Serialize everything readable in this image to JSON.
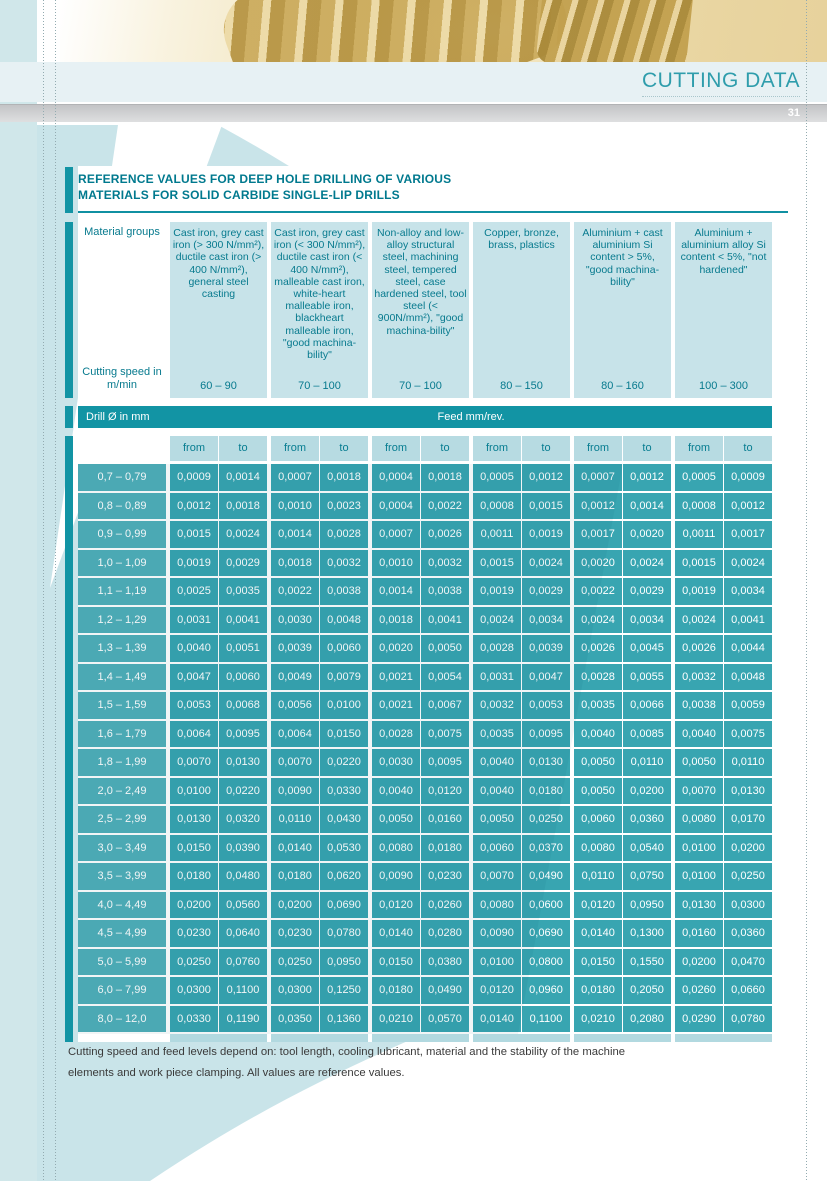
{
  "page": {
    "header_title": "CUTTING DATA",
    "page_number": "31"
  },
  "table_title": {
    "line1": "REFERENCE VALUES FOR DEEP HOLE DRILLING OF VARIOUS",
    "line2": "MATERIALS FOR SOLID CARBIDE SINGLE-LIP DRILLS"
  },
  "materials": {
    "row_label": "Material groups",
    "speed_label": "Cutting speed in m/min",
    "groups": [
      {
        "name": "Cast iron, grey cast iron (> 300 N/mm²), ductile cast iron (> 400 N/mm²), general steel casting",
        "speed": "60 – 90"
      },
      {
        "name": "Cast iron, grey cast iron (< 300 N/mm²), ductile cast iron (< 400 N/mm²), malleable cast iron, white-heart malleable iron, blackheart malleable iron, \"good machina-bility\"",
        "speed": "70 – 100"
      },
      {
        "name": "Non-alloy and low-alloy structural steel, machining steel, tempered steel, case hardened steel, tool steel (< 900N/mm²), \"good machina-bility\"",
        "speed": "70 – 100"
      },
      {
        "name": "Copper, bronze, brass, plastics",
        "speed": "80 – 150"
      },
      {
        "name": "Aluminium + cast aluminium Si content > 5%, \"good machina-bility\"",
        "speed": "80 – 160"
      },
      {
        "name": "Aluminium + aluminium alloy Si content < 5%, \"not hardened\"",
        "speed": "100 – 300"
      }
    ]
  },
  "feed_table": {
    "drill_col_header": "Drill Ø in mm",
    "feed_header": "Feed mm/rev.",
    "from_label": "from",
    "to_label": "to",
    "rows": [
      {
        "range": "0,7 – 0,79",
        "values": [
          "0,0009",
          "0,0014",
          "0,0007",
          "0,0018",
          "0,0004",
          "0,0018",
          "0,0005",
          "0,0012",
          "0,0007",
          "0,0012",
          "0,0005",
          "0,0009"
        ]
      },
      {
        "range": "0,8 – 0,89",
        "values": [
          "0,0012",
          "0,0018",
          "0,0010",
          "0,0023",
          "0,0004",
          "0,0022",
          "0,0008",
          "0,0015",
          "0,0012",
          "0,0014",
          "0,0008",
          "0,0012"
        ]
      },
      {
        "range": "0,9 – 0,99",
        "values": [
          "0,0015",
          "0,0024",
          "0,0014",
          "0,0028",
          "0,0007",
          "0,0026",
          "0,0011",
          "0,0019",
          "0,0017",
          "0,0020",
          "0,0011",
          "0,0017"
        ]
      },
      {
        "range": "1,0 – 1,09",
        "values": [
          "0,0019",
          "0,0029",
          "0,0018",
          "0,0032",
          "0,0010",
          "0,0032",
          "0,0015",
          "0,0024",
          "0,0020",
          "0,0024",
          "0,0015",
          "0,0024"
        ]
      },
      {
        "range": "1,1 – 1,19",
        "values": [
          "0,0025",
          "0,0035",
          "0,0022",
          "0,0038",
          "0,0014",
          "0,0038",
          "0,0019",
          "0,0029",
          "0,0022",
          "0,0029",
          "0,0019",
          "0,0034"
        ]
      },
      {
        "range": "1,2 – 1,29",
        "values": [
          "0,0031",
          "0,0041",
          "0,0030",
          "0,0048",
          "0,0018",
          "0,0041",
          "0,0024",
          "0,0034",
          "0,0024",
          "0,0034",
          "0,0024",
          "0,0041"
        ]
      },
      {
        "range": "1,3 – 1,39",
        "values": [
          "0,0040",
          "0,0051",
          "0,0039",
          "0,0060",
          "0,0020",
          "0,0050",
          "0,0028",
          "0,0039",
          "0,0026",
          "0,0045",
          "0,0026",
          "0,0044"
        ]
      },
      {
        "range": "1,4 – 1,49",
        "values": [
          "0,0047",
          "0,0060",
          "0,0049",
          "0,0079",
          "0,0021",
          "0,0054",
          "0,0031",
          "0,0047",
          "0,0028",
          "0,0055",
          "0,0032",
          "0,0048"
        ]
      },
      {
        "range": "1,5 – 1,59",
        "values": [
          "0,0053",
          "0,0068",
          "0,0056",
          "0,0100",
          "0,0021",
          "0,0067",
          "0,0032",
          "0,0053",
          "0,0035",
          "0,0066",
          "0,0038",
          "0,0059"
        ]
      },
      {
        "range": "1,6 – 1,79",
        "values": [
          "0,0064",
          "0,0095",
          "0,0064",
          "0,0150",
          "0,0028",
          "0,0075",
          "0,0035",
          "0,0095",
          "0,0040",
          "0,0085",
          "0,0040",
          "0,0075"
        ]
      },
      {
        "range": "1,8 – 1,99",
        "values": [
          "0,0070",
          "0,0130",
          "0,0070",
          "0,0220",
          "0,0030",
          "0,0095",
          "0,0040",
          "0,0130",
          "0,0050",
          "0,0110",
          "0,0050",
          "0,0110"
        ]
      },
      {
        "range": "2,0 – 2,49",
        "values": [
          "0,0100",
          "0,0220",
          "0,0090",
          "0,0330",
          "0,0040",
          "0,0120",
          "0,0040",
          "0,0180",
          "0,0050",
          "0,0200",
          "0,0070",
          "0,0130"
        ]
      },
      {
        "range": "2,5 – 2,99",
        "values": [
          "0,0130",
          "0,0320",
          "0,0110",
          "0,0430",
          "0,0050",
          "0,0160",
          "0,0050",
          "0,0250",
          "0,0060",
          "0,0360",
          "0,0080",
          "0,0170"
        ]
      },
      {
        "range": "3,0 – 3,49",
        "values": [
          "0,0150",
          "0,0390",
          "0,0140",
          "0,0530",
          "0,0080",
          "0,0180",
          "0,0060",
          "0,0370",
          "0,0080",
          "0,0540",
          "0,0100",
          "0,0200"
        ]
      },
      {
        "range": "3,5 – 3,99",
        "values": [
          "0,0180",
          "0,0480",
          "0,0180",
          "0,0620",
          "0,0090",
          "0,0230",
          "0,0070",
          "0,0490",
          "0,0110",
          "0,0750",
          "0,0100",
          "0,0250"
        ]
      },
      {
        "range": "4,0 – 4,49",
        "values": [
          "0,0200",
          "0,0560",
          "0,0200",
          "0,0690",
          "0,0120",
          "0,0260",
          "0,0080",
          "0,0600",
          "0,0120",
          "0,0950",
          "0,0130",
          "0,0300"
        ]
      },
      {
        "range": "4,5 – 4,99",
        "values": [
          "0,0230",
          "0,0640",
          "0,0230",
          "0,0780",
          "0,0140",
          "0,0280",
          "0,0090",
          "0,0690",
          "0,0140",
          "0,1300",
          "0,0160",
          "0,0360"
        ]
      },
      {
        "range": "5,0 – 5,99",
        "values": [
          "0,0250",
          "0,0760",
          "0,0250",
          "0,0950",
          "0,0150",
          "0,0380",
          "0,0100",
          "0,0800",
          "0,0150",
          "0,1550",
          "0,0200",
          "0,0470"
        ]
      },
      {
        "range": "6,0 – 7,99",
        "values": [
          "0,0300",
          "0,1100",
          "0,0300",
          "0,1250",
          "0,0180",
          "0,0490",
          "0,0120",
          "0,0960",
          "0,0180",
          "0,2050",
          "0,0260",
          "0,0660"
        ]
      },
      {
        "range": "8,0 – 12,0",
        "values": [
          "0,0330",
          "0,1190",
          "0,0350",
          "0,1360",
          "0,0210",
          "0,0570",
          "0,0140",
          "0,1100",
          "0,0210",
          "0,2080",
          "0,0290",
          "0,0780"
        ]
      }
    ]
  },
  "footer": {
    "line1": "Cutting speed and feed levels depend on: tool length, cooling lubricant, material and the stability of the machine",
    "line2": "elements and work piece clamping. All values are reference values."
  },
  "colors": {
    "accent_teal": "#1294a4",
    "title_teal": "#00798e",
    "cell_teal": "#38a5b1",
    "light_cell": "#c7e3e9",
    "swoosh_blue": "#c9e4e9",
    "band_blue": "#e7f1f4",
    "gray_band": "#c3c4c6"
  }
}
